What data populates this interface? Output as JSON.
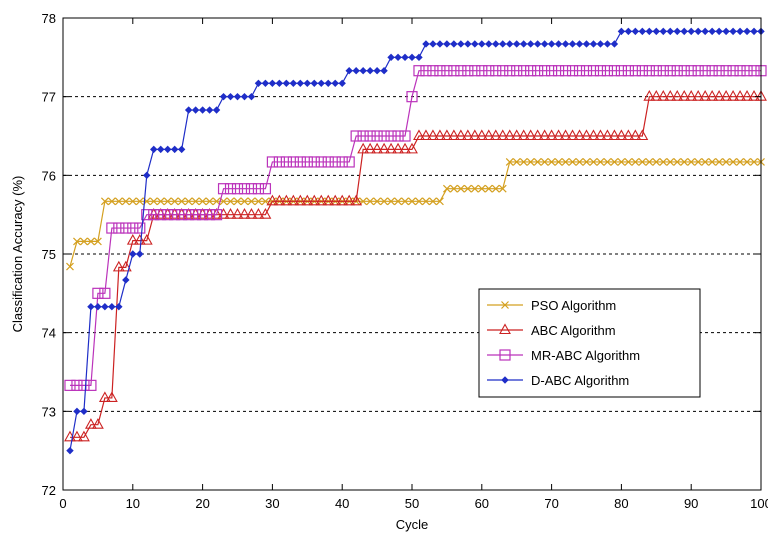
{
  "chart_data": {
    "type": "line",
    "xlabel": "Cycle",
    "ylabel": "Classification Accuracy (%)",
    "xlim": [
      0,
      100
    ],
    "ylim": [
      72,
      78
    ],
    "xticks": [
      0,
      10,
      20,
      30,
      40,
      50,
      60,
      70,
      80,
      90,
      100
    ],
    "yticks": [
      72,
      73,
      74,
      75,
      76,
      77,
      78
    ],
    "grid": "horizontal-dashed",
    "legend_position": "lower-right",
    "series": [
      {
        "name": "PSO Algorithm",
        "color": "#d4a020",
        "marker": "x",
        "points": [
          [
            1,
            74.84
          ],
          [
            2,
            75.16
          ],
          [
            5,
            75.16
          ],
          [
            6,
            75.67
          ],
          [
            54,
            75.67
          ],
          [
            55,
            75.83
          ],
          [
            63,
            75.83
          ],
          [
            64,
            76.17
          ],
          [
            100,
            76.17
          ]
        ]
      },
      {
        "name": "ABC Algorithm",
        "color": "#cc2222",
        "marker": "triangle",
        "points": [
          [
            1,
            72.67
          ],
          [
            3,
            72.67
          ],
          [
            4,
            72.83
          ],
          [
            5,
            72.83
          ],
          [
            6,
            73.17
          ],
          [
            7,
            73.17
          ],
          [
            8,
            74.83
          ],
          [
            9,
            74.83
          ],
          [
            10,
            75.17
          ],
          [
            12,
            75.17
          ],
          [
            13,
            75.5
          ],
          [
            29,
            75.5
          ],
          [
            30,
            75.67
          ],
          [
            42,
            75.67
          ],
          [
            43,
            76.33
          ],
          [
            50,
            76.33
          ],
          [
            51,
            76.5
          ],
          [
            83,
            76.5
          ],
          [
            84,
            77.0
          ],
          [
            100,
            77.0
          ]
        ]
      },
      {
        "name": "MR-ABC Algorithm",
        "color": "#bb33bb",
        "marker": "square",
        "points": [
          [
            1,
            73.33
          ],
          [
            4,
            73.33
          ],
          [
            5,
            74.5
          ],
          [
            6,
            74.5
          ],
          [
            7,
            75.33
          ],
          [
            11,
            75.33
          ],
          [
            12,
            75.5
          ],
          [
            22,
            75.5
          ],
          [
            23,
            75.83
          ],
          [
            29,
            75.83
          ],
          [
            30,
            76.17
          ],
          [
            41,
            76.17
          ],
          [
            42,
            76.5
          ],
          [
            49,
            76.5
          ],
          [
            50,
            77.0
          ],
          [
            51,
            77.33
          ],
          [
            100,
            77.33
          ]
        ]
      },
      {
        "name": "D-ABC Algorithm",
        "color": "#1f2ec8",
        "marker": "diamond",
        "points": [
          [
            1,
            72.5
          ],
          [
            2,
            73.0
          ],
          [
            3,
            73.0
          ],
          [
            4,
            74.33
          ],
          [
            8,
            74.33
          ],
          [
            9,
            74.67
          ],
          [
            10,
            75.0
          ],
          [
            11,
            75.0
          ],
          [
            12,
            76.0
          ],
          [
            13,
            76.33
          ],
          [
            17,
            76.33
          ],
          [
            18,
            76.83
          ],
          [
            22,
            76.83
          ],
          [
            23,
            77.0
          ],
          [
            27,
            77.0
          ],
          [
            28,
            77.17
          ],
          [
            40,
            77.17
          ],
          [
            41,
            77.33
          ],
          [
            46,
            77.33
          ],
          [
            47,
            77.5
          ],
          [
            51,
            77.5
          ],
          [
            52,
            77.67
          ],
          [
            79,
            77.67
          ],
          [
            80,
            77.83
          ],
          [
            100,
            77.83
          ]
        ]
      }
    ]
  }
}
